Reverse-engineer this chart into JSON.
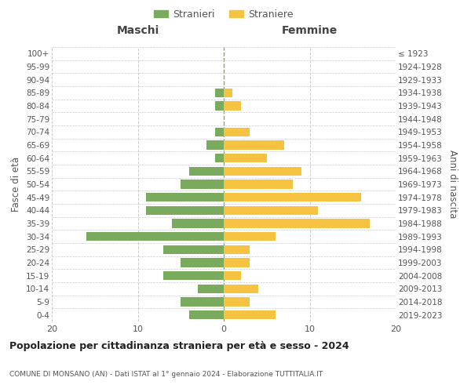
{
  "age_groups": [
    "100+",
    "95-99",
    "90-94",
    "85-89",
    "80-84",
    "75-79",
    "70-74",
    "65-69",
    "60-64",
    "55-59",
    "50-54",
    "45-49",
    "40-44",
    "35-39",
    "30-34",
    "25-29",
    "20-24",
    "15-19",
    "10-14",
    "5-9",
    "0-4"
  ],
  "birth_years": [
    "≤ 1923",
    "1924-1928",
    "1929-1933",
    "1934-1938",
    "1939-1943",
    "1944-1948",
    "1949-1953",
    "1954-1958",
    "1959-1963",
    "1964-1968",
    "1969-1973",
    "1974-1978",
    "1979-1983",
    "1984-1988",
    "1989-1993",
    "1994-1998",
    "1999-2003",
    "2004-2008",
    "2009-2013",
    "2014-2018",
    "2019-2023"
  ],
  "maschi": [
    0,
    0,
    0,
    1,
    1,
    0,
    1,
    2,
    1,
    4,
    5,
    9,
    9,
    6,
    16,
    7,
    5,
    7,
    3,
    5,
    4
  ],
  "femmine": [
    0,
    0,
    0,
    1,
    2,
    0,
    3,
    7,
    5,
    9,
    8,
    16,
    11,
    17,
    6,
    3,
    3,
    2,
    4,
    3,
    6
  ],
  "color_maschi": "#7aaa5e",
  "color_femmine": "#f5c242",
  "title": "Popolazione per cittadinanza straniera per età e sesso - 2024",
  "subtitle": "COMUNE DI MONSANO (AN) - Dati ISTAT al 1° gennaio 2024 - Elaborazione TUTTITALIA.IT",
  "label_maschi": "Stranieri",
  "label_femmine": "Straniere",
  "header_left": "Maschi",
  "header_right": "Femmine",
  "ylabel_left": "Fasce di età",
  "ylabel_right": "Anni di nascita",
  "xlim": 20,
  "bg_color": "#ffffff",
  "grid_color": "#cccccc",
  "text_color": "#555555",
  "title_color": "#222222"
}
